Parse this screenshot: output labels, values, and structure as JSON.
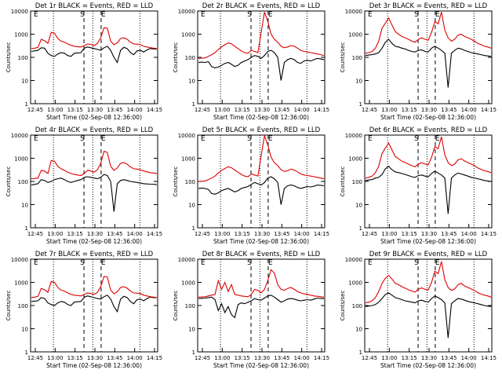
{
  "chart_data": [
    {
      "type": "line",
      "title": "Det 1r BLACK = Events, RED = LLD",
      "ylabel": "Counts/sec",
      "xlabel": "Start Time (02-Sep-08 12:36:00)",
      "x_ticks": [
        "12:45",
        "13:00",
        "13:15",
        "13:30",
        "13:45",
        "14:00",
        "14:15"
      ],
      "y_ticks": [
        "1",
        "10",
        "100",
        "1000",
        "10000"
      ],
      "ylim": [
        1,
        10000
      ],
      "y_scale": "log",
      "markers": [
        "E",
        "S",
        "E"
      ],
      "series": [
        {
          "name": "Events",
          "color": "#000000",
          "values": [
            180,
            190,
            200,
            260,
            250,
            150,
            120,
            110,
            140,
            160,
            150,
            120,
            110,
            150,
            155,
            160,
            250,
            280,
            260,
            240,
            220,
            200,
            260,
            300,
            200,
            100,
            60,
            200,
            270,
            240,
            160,
            130,
            190,
            200,
            170,
            210,
            240,
            230,
            230
          ]
        },
        {
          "name": "LLD",
          "color": "#e00000",
          "values": [
            240,
            250,
            270,
            600,
            520,
            400,
            1200,
            1100,
            650,
            500,
            450,
            380,
            330,
            300,
            290,
            280,
            320,
            380,
            360,
            320,
            400,
            700,
            1900,
            1800,
            500,
            350,
            420,
            650,
            700,
            600,
            450,
            380,
            370,
            360,
            300,
            280,
            260,
            250,
            240
          ]
        }
      ]
    },
    {
      "type": "line",
      "title": "Det 2r BLACK = Events, RED = LLD",
      "ylabel": "Counts/sec",
      "xlabel": "Start Time (02-Sep-08 12:36:00)",
      "x_ticks": [
        "12:45",
        "13:00",
        "13:15",
        "13:30",
        "13:45",
        "14:00",
        "14:15"
      ],
      "y_ticks": [
        "1",
        "10",
        "100",
        "1000",
        "10000"
      ],
      "ylim": [
        1,
        10000
      ],
      "y_scale": "log",
      "markers": [
        "E",
        "S",
        "E"
      ],
      "series": [
        {
          "name": "Events",
          "color": "#000000",
          "values": [
            60,
            62,
            60,
            65,
            40,
            35,
            38,
            45,
            55,
            60,
            50,
            40,
            45,
            60,
            70,
            80,
            100,
            120,
            110,
            90,
            120,
            180,
            200,
            160,
            100,
            10,
            60,
            80,
            90,
            80,
            60,
            55,
            70,
            75,
            70,
            80,
            90,
            85,
            80
          ]
        },
        {
          "name": "LLD",
          "color": "#e00000",
          "values": [
            90,
            92,
            95,
            110,
            130,
            160,
            220,
            280,
            350,
            420,
            380,
            300,
            240,
            190,
            160,
            150,
            200,
            180,
            160,
            1200,
            9000,
            3500,
            1000,
            600,
            450,
            300,
            260,
            280,
            320,
            300,
            250,
            200,
            180,
            170,
            160,
            150,
            140,
            130,
            120
          ]
        }
      ]
    },
    {
      "type": "line",
      "title": "Det 3r BLACK = Events, RED = LLD",
      "ylabel": "Counts/sec",
      "xlabel": "Start Time (02-Sep-08 12:36:00)",
      "x_ticks": [
        "12:45",
        "13:00",
        "13:15",
        "13:30",
        "13:45",
        "14:00",
        "14:15"
      ],
      "y_ticks": [
        "1",
        "10",
        "100",
        "1000",
        "10000"
      ],
      "ylim": [
        1,
        10000
      ],
      "y_scale": "log",
      "markers": [
        "E",
        "S",
        "E"
      ],
      "series": [
        {
          "name": "Events",
          "color": "#000000",
          "values": [
            120,
            125,
            130,
            140,
            160,
            250,
            450,
            600,
            400,
            300,
            280,
            250,
            230,
            200,
            180,
            170,
            200,
            210,
            180,
            170,
            250,
            300,
            250,
            200,
            150,
            5,
            150,
            200,
            250,
            230,
            200,
            180,
            160,
            150,
            140,
            130,
            120,
            115,
            110
          ]
        },
        {
          "name": "LLD",
          "color": "#e00000",
          "values": [
            150,
            160,
            180,
            250,
            500,
            1800,
            3000,
            5000,
            2500,
            1300,
            1000,
            800,
            700,
            600,
            500,
            450,
            600,
            700,
            600,
            550,
            1200,
            3500,
            2800,
            9000,
            1500,
            700,
            500,
            600,
            900,
            1000,
            800,
            700,
            600,
            500,
            400,
            350,
            300,
            280,
            250
          ]
        }
      ]
    },
    {
      "type": "line",
      "title": "Det 4r BLACK = Events, RED = LLD",
      "ylabel": "Counts/sec",
      "xlabel": "Start Time (02-Sep-08 12:36:00)",
      "x_ticks": [
        "12:45",
        "13:00",
        "13:15",
        "13:30",
        "13:45",
        "14:00",
        "14:15"
      ],
      "y_ticks": [
        "1",
        "10",
        "100",
        "1000",
        "10000"
      ],
      "ylim": [
        1,
        10000
      ],
      "y_scale": "log",
      "markers": [
        "E",
        "S",
        "E"
      ],
      "series": [
        {
          "name": "Events",
          "color": "#000000",
          "values": [
            70,
            75,
            80,
            120,
            110,
            90,
            100,
            120,
            130,
            140,
            120,
            100,
            90,
            100,
            110,
            120,
            150,
            160,
            150,
            140,
            130,
            150,
            200,
            180,
            100,
            5,
            80,
            110,
            120,
            110,
            100,
            95,
            90,
            85,
            80,
            78,
            76,
            75,
            74
          ]
        },
        {
          "name": "LLD",
          "color": "#e00000",
          "values": [
            130,
            135,
            140,
            300,
            280,
            220,
            800,
            750,
            450,
            350,
            300,
            250,
            220,
            200,
            190,
            180,
            220,
            300,
            280,
            250,
            320,
            600,
            2000,
            1800,
            450,
            300,
            380,
            600,
            650,
            550,
            420,
            350,
            340,
            320,
            280,
            260,
            240,
            230,
            220
          ]
        }
      ]
    },
    {
      "type": "line",
      "title": "Det 5r BLACK = Events, RED = LLD",
      "ylabel": "Counts/sec",
      "xlabel": "Start Time (02-Sep-08 12:36:00)",
      "x_ticks": [
        "12:45",
        "13:00",
        "13:15",
        "13:30",
        "13:45",
        "14:00",
        "14:15"
      ],
      "y_ticks": [
        "1",
        "10",
        "100",
        "1000",
        "10000"
      ],
      "ylim": [
        1,
        10000
      ],
      "y_scale": "log",
      "markers": [
        "E",
        "S",
        "E"
      ],
      "series": [
        {
          "name": "Events",
          "color": "#000000",
          "values": [
            50,
            52,
            50,
            45,
            30,
            28,
            32,
            40,
            45,
            50,
            42,
            35,
            40,
            50,
            55,
            60,
            75,
            90,
            80,
            70,
            90,
            140,
            160,
            130,
            90,
            10,
            50,
            65,
            70,
            65,
            55,
            50,
            55,
            60,
            58,
            62,
            70,
            68,
            65
          ]
        },
        {
          "name": "LLD",
          "color": "#e00000",
          "values": [
            100,
            102,
            105,
            120,
            140,
            170,
            230,
            300,
            360,
            430,
            390,
            310,
            250,
            200,
            170,
            160,
            210,
            190,
            170,
            1300,
            9500,
            3800,
            1100,
            650,
            480,
            320,
            270,
            290,
            340,
            310,
            260,
            210,
            190,
            180,
            170,
            160,
            150,
            140,
            130
          ]
        }
      ]
    },
    {
      "type": "line",
      "title": "Det 6r BLACK = Events, RED = LLD",
      "ylabel": "Counts/sec",
      "xlabel": "Start Time (02-Sep-08 12:36:00)",
      "x_ticks": [
        "12:45",
        "13:00",
        "13:15",
        "13:30",
        "13:45",
        "14:00",
        "14:15"
      ],
      "y_ticks": [
        "1",
        "10",
        "100",
        "1000",
        "10000"
      ],
      "ylim": [
        1,
        10000
      ],
      "y_scale": "log",
      "markers": [
        "E",
        "S",
        "E"
      ],
      "series": [
        {
          "name": "Events",
          "color": "#000000",
          "values": [
            110,
            115,
            120,
            140,
            150,
            200,
            350,
            450,
            320,
            260,
            240,
            220,
            200,
            180,
            160,
            150,
            180,
            190,
            170,
            160,
            220,
            280,
            230,
            190,
            140,
            4,
            140,
            190,
            230,
            210,
            190,
            170,
            150,
            140,
            130,
            120,
            110,
            105,
            100
          ]
        },
        {
          "name": "LLD",
          "color": "#e00000",
          "values": [
            140,
            150,
            170,
            240,
            450,
            1600,
            2800,
            4500,
            2300,
            1200,
            950,
            750,
            650,
            560,
            480,
            430,
            560,
            650,
            560,
            520,
            1100,
            3200,
            2600,
            8500,
            1400,
            650,
            480,
            560,
            850,
            950,
            760,
            650,
            560,
            480,
            380,
            330,
            290,
            270,
            240
          ]
        }
      ]
    },
    {
      "type": "line",
      "title": "Det 7r BLACK = Events, RED = LLD",
      "ylabel": "Counts/sec",
      "xlabel": "Start Time (02-Sep-08 12:36:00)",
      "x_ticks": [
        "12:45",
        "13:00",
        "13:15",
        "13:30",
        "13:45",
        "14:00",
        "14:15"
      ],
      "y_ticks": [
        "1",
        "10",
        "100",
        "1000",
        "10000"
      ],
      "ylim": [
        1,
        10000
      ],
      "y_scale": "log",
      "markers": [
        "E",
        "S",
        "E"
      ],
      "series": [
        {
          "name": "Events",
          "color": "#000000",
          "values": [
            150,
            155,
            160,
            220,
            200,
            130,
            110,
            100,
            130,
            150,
            140,
            110,
            100,
            140,
            145,
            150,
            230,
            260,
            240,
            220,
            200,
            190,
            240,
            280,
            190,
            90,
            55,
            190,
            250,
            220,
            150,
            120,
            180,
            190,
            160,
            200,
            230,
            220,
            220
          ]
        },
        {
          "name": "LLD",
          "color": "#e00000",
          "values": [
            220,
            230,
            250,
            550,
            480,
            370,
            1100,
            1000,
            600,
            460,
            420,
            350,
            300,
            280,
            270,
            260,
            300,
            350,
            330,
            300,
            370,
            650,
            1800,
            1700,
            460,
            320,
            390,
            600,
            650,
            560,
            420,
            350,
            340,
            330,
            280,
            260,
            240,
            230,
            220
          ]
        }
      ]
    },
    {
      "type": "line",
      "title": "Det 8r BLACK = Events, RED = LLD",
      "ylabel": "Counts/sec",
      "xlabel": "Start Time (02-Sep-08 12:36:00)",
      "x_ticks": [
        "12:45",
        "13:00",
        "13:15",
        "13:30",
        "13:45",
        "14:00",
        "14:15"
      ],
      "y_ticks": [
        "1",
        "10",
        "100",
        "1000",
        "10000"
      ],
      "ylim": [
        1,
        10000
      ],
      "y_scale": "log",
      "markers": [
        "E",
        "S",
        "E"
      ],
      "series": [
        {
          "name": "Events",
          "color": "#000000",
          "values": [
            200,
            205,
            210,
            220,
            230,
            180,
            60,
            120,
            50,
            90,
            40,
            30,
            110,
            130,
            120,
            140,
            160,
            200,
            180,
            170,
            210,
            260,
            280,
            230,
            180,
            140,
            160,
            190,
            200,
            190,
            170,
            160,
            170,
            180,
            170,
            190,
            210,
            200,
            200
          ]
        },
        {
          "name": "LLD",
          "color": "#e00000",
          "values": [
            230,
            235,
            240,
            260,
            280,
            300,
            1200,
            500,
            1000,
            400,
            800,
            300,
            280,
            260,
            250,
            240,
            300,
            500,
            450,
            350,
            500,
            1200,
            3500,
            2500,
            800,
            500,
            450,
            550,
            600,
            500,
            400,
            350,
            320,
            300,
            280,
            260,
            250,
            240,
            230
          ]
        }
      ]
    },
    {
      "type": "line",
      "title": "Det 9r BLACK = Events, RED = LLD",
      "ylabel": "Counts/sec",
      "xlabel": "Start Time (02-Sep-08 12:36:00)",
      "x_ticks": [
        "12:45",
        "13:00",
        "13:15",
        "13:30",
        "13:45",
        "14:00",
        "14:15"
      ],
      "y_ticks": [
        "1",
        "10",
        "100",
        "1000",
        "10000"
      ],
      "ylim": [
        1,
        10000
      ],
      "y_scale": "log",
      "markers": [
        "E",
        "S",
        "E"
      ],
      "series": [
        {
          "name": "Events",
          "color": "#000000",
          "values": [
            90,
            95,
            100,
            110,
            140,
            200,
            300,
            350,
            280,
            220,
            200,
            180,
            160,
            150,
            140,
            130,
            160,
            170,
            150,
            140,
            200,
            260,
            220,
            180,
            130,
            4,
            120,
            160,
            200,
            190,
            170,
            150,
            140,
            130,
            120,
            110,
            100,
            95,
            90
          ]
        },
        {
          "name": "LLD",
          "color": "#e00000",
          "values": [
            130,
            140,
            160,
            220,
            400,
            900,
            1500,
            2000,
            1400,
            900,
            800,
            650,
            560,
            480,
            420,
            380,
            500,
            580,
            500,
            470,
            1000,
            3000,
            2400,
            8000,
            1300,
            600,
            450,
            520,
            800,
            900,
            700,
            600,
            520,
            450,
            360,
            310,
            280,
            260,
            230
          ]
        }
      ]
    }
  ]
}
